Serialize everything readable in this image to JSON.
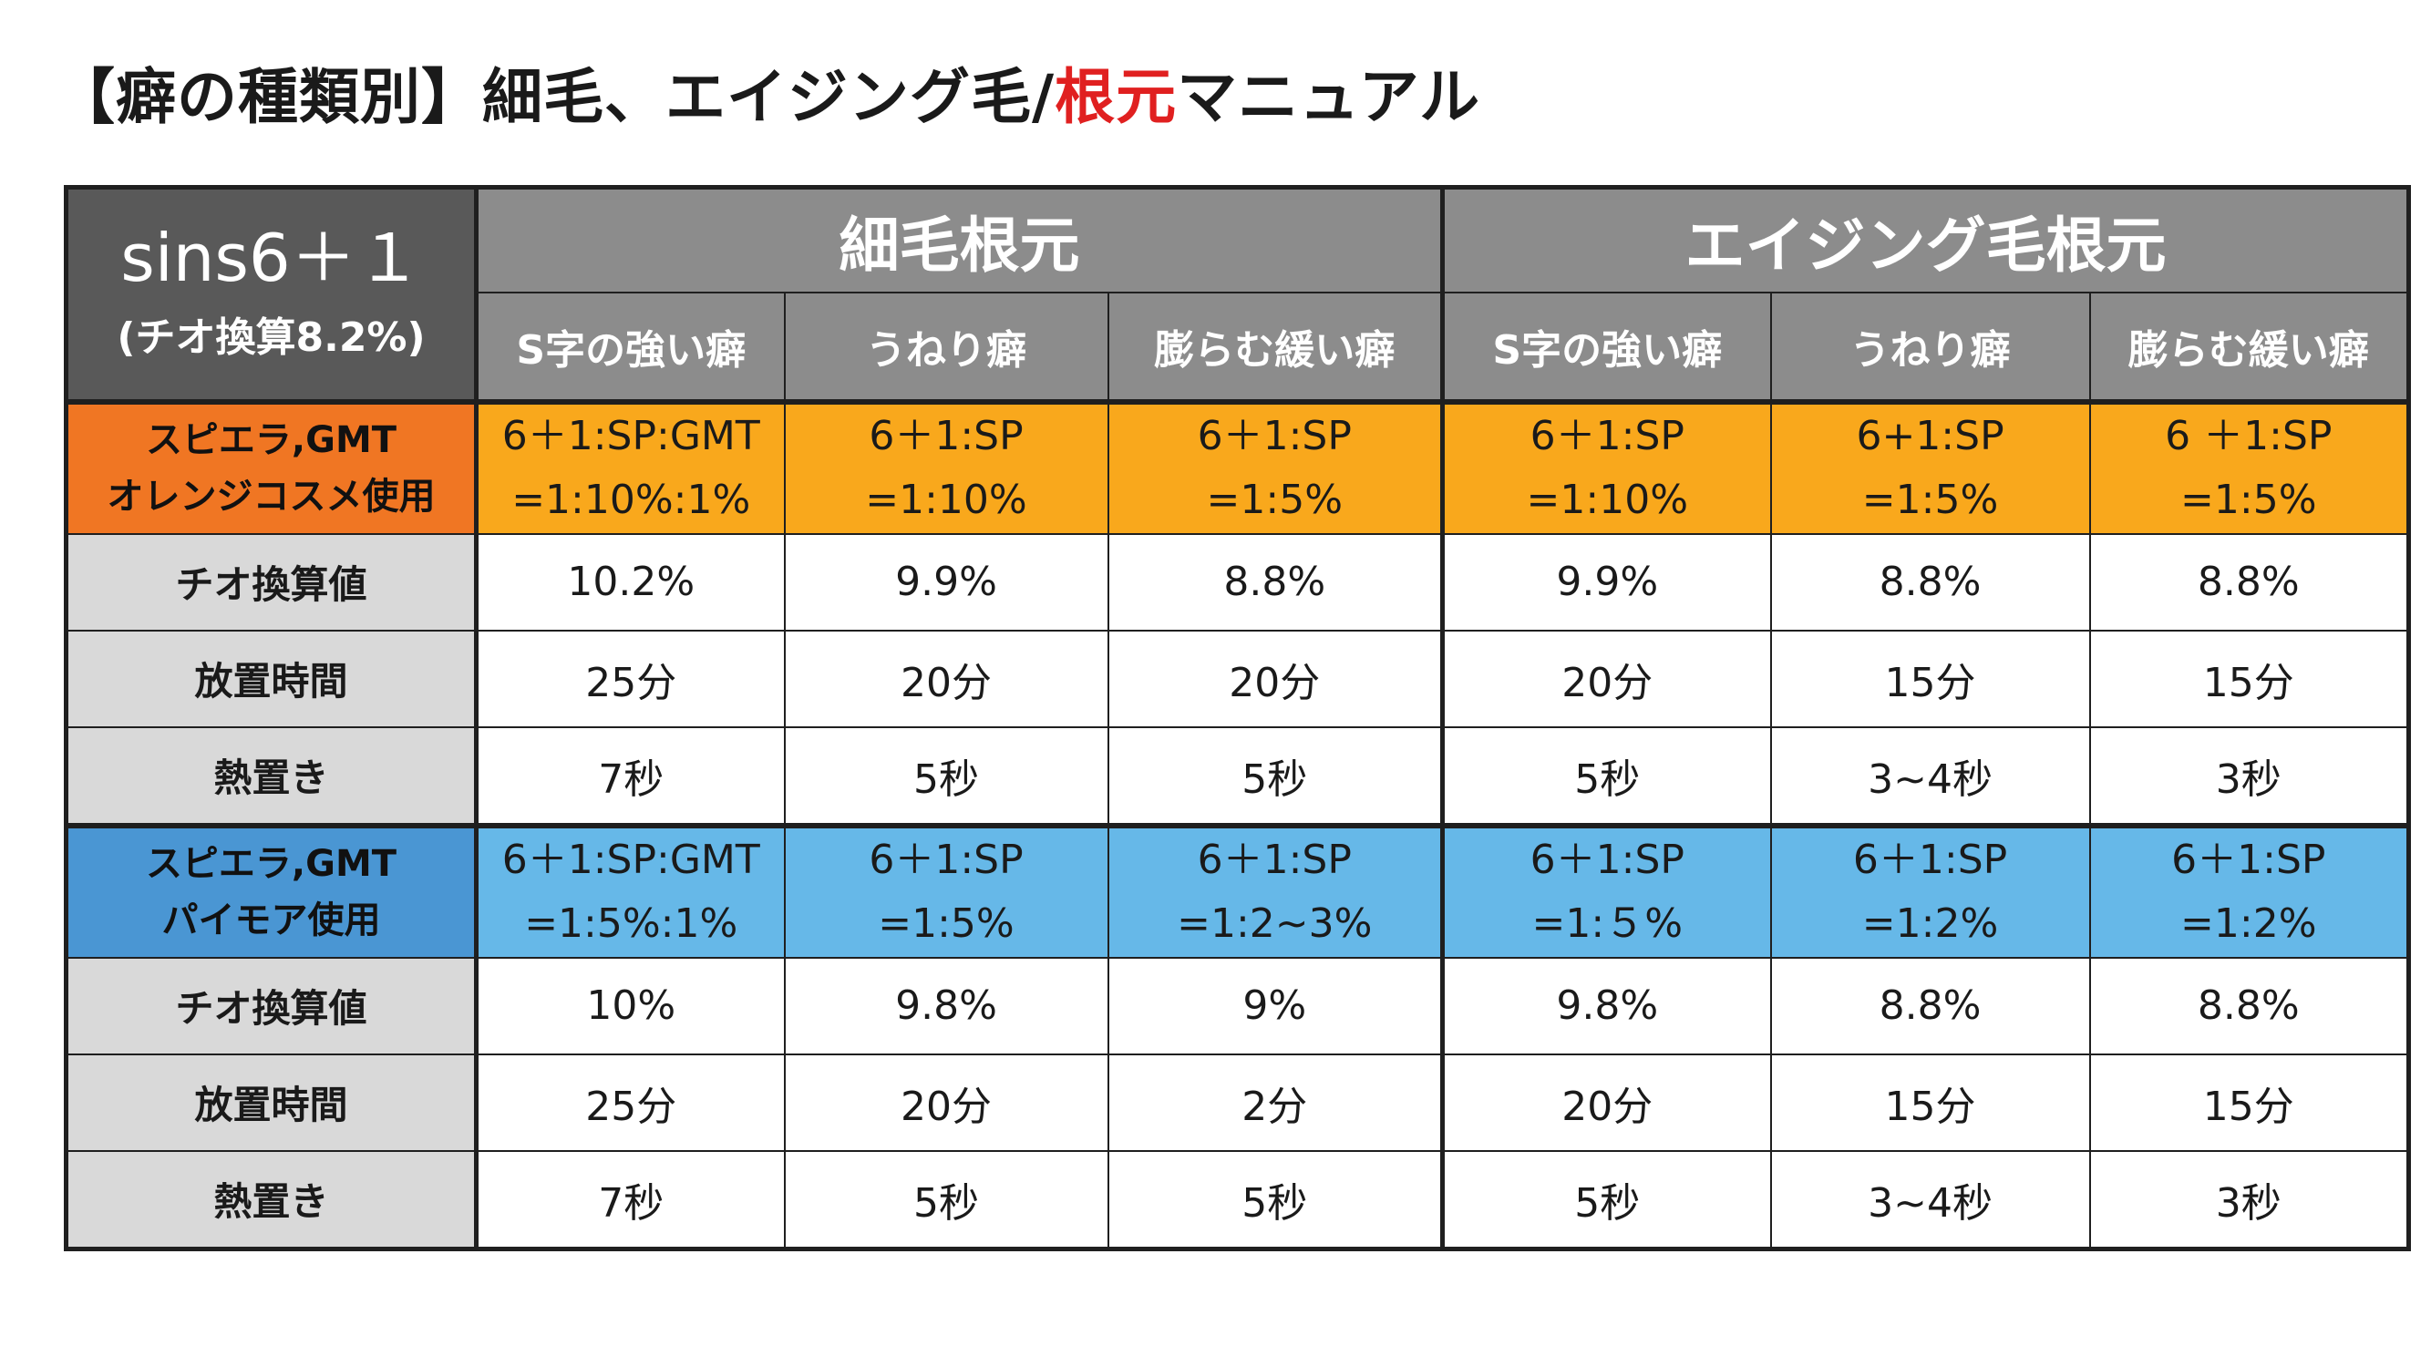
{
  "title": {
    "prefix": "【癖の種類別】細毛、エイジング毛/",
    "highlight": "根元",
    "suffix": "マニュアル"
  },
  "corner": {
    "product": "sins6＋１",
    "note": "(チオ換算8.2%)"
  },
  "groups": [
    "細毛根元",
    "エイジング毛根元"
  ],
  "subheaders": [
    "S字の強い癖",
    "うねり癖",
    "膨らむ緩い癖",
    "S字の強い癖",
    "うねり癖",
    "膨らむ緩い癖"
  ],
  "sections": [
    {
      "category": [
        "スピエラ,GMT",
        "オレンジコスメ使用"
      ],
      "ratios": [
        [
          "6＋1:SP:GMT",
          "=1:10%:1%"
        ],
        [
          "6＋1:SP",
          "=1:10%"
        ],
        [
          "6＋1:SP",
          "=1:5%"
        ],
        [
          "6＋1:SP",
          "=1:10%"
        ],
        [
          "6+1:SP",
          "=1:5%"
        ],
        [
          "6 ＋1:SP",
          "=1:5%"
        ]
      ],
      "rows": [
        {
          "label": "チオ換算値",
          "values": [
            "10.2%",
            "9.9%",
            "8.8%",
            "9.9%",
            "8.8%",
            "8.8%"
          ]
        },
        {
          "label": "放置時間",
          "values": [
            "25分",
            "20分",
            "20分",
            "20分",
            "15分",
            "15分"
          ]
        },
        {
          "label": "熱置き",
          "values": [
            "7秒",
            "5秒",
            "5秒",
            "5秒",
            "3~4秒",
            "3秒"
          ]
        }
      ]
    },
    {
      "category": [
        "スピエラ,GMT",
        "パイモア使用"
      ],
      "ratios": [
        [
          "6＋1:SP:GMT",
          "=1:5%:1%"
        ],
        [
          "6＋1:SP",
          "=1:5%"
        ],
        [
          "6＋1:SP",
          "=1:2~3%"
        ],
        [
          "6＋1:SP",
          "=1:５%"
        ],
        [
          "6＋1:SP",
          "=1:2%"
        ],
        [
          "6＋1:SP",
          "=1:2%"
        ]
      ],
      "rows": [
        {
          "label": "チオ換算値",
          "values": [
            "10%",
            "9.8%",
            "9%",
            "9.8%",
            "8.8%",
            "8.8%"
          ]
        },
        {
          "label": "放置時間",
          "values": [
            "25分",
            "20分",
            "2分",
            "20分",
            "15分",
            "15分"
          ]
        },
        {
          "label": "熱置き",
          "values": [
            "7秒",
            "5秒",
            "5秒",
            "5秒",
            "3~4秒",
            "3秒"
          ]
        }
      ]
    }
  ],
  "colors": {
    "orange_category": "#f07623",
    "orange_values": "#f9a81c",
    "blue_category": "#4a96d3",
    "blue_values": "#66b8e8",
    "header_gray": "#8c8c8c",
    "corner_gray": "#595959",
    "label_gray": "#d9d9d9",
    "title_highlight": "#e02020"
  }
}
